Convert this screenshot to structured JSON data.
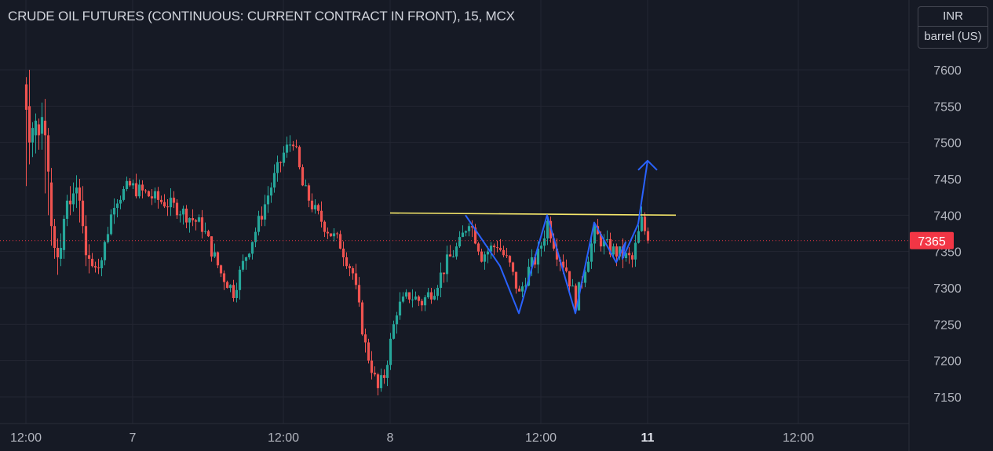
{
  "chart_data": {
    "type": "candlestick",
    "title": "CRUDE OIL FUTURES (CONTINUOUS: CURRENT CONTRACT IN FRONT), 15, MCX",
    "currency": "INR",
    "unit": "barrel (US)",
    "last_price": 7365,
    "ylim": [
      7110,
      7640
    ],
    "y_ticks": [
      7150,
      7200,
      7250,
      7300,
      7350,
      7400,
      7450,
      7500,
      7550,
      7600
    ],
    "x_ticks": [
      {
        "label": "12:00",
        "bar": 0,
        "bold": false
      },
      {
        "label": "7",
        "bar": 34,
        "bold": false
      },
      {
        "label": "12:00",
        "bar": 82,
        "bold": false
      },
      {
        "label": "8",
        "bar": 116,
        "bold": false
      },
      {
        "label": "12:00",
        "bar": 164,
        "bold": false
      },
      {
        "label": "11",
        "bar": 198,
        "bold": true
      },
      {
        "label": "12:00",
        "bar": 246,
        "bold": false
      }
    ],
    "grid": true,
    "colors": {
      "up": "#26a69a",
      "down": "#ef5350",
      "background": "#161a25",
      "grid": "#232632",
      "resistance": "#f5e76a",
      "pattern": "#2962ff",
      "price_tag": "#f23645"
    },
    "candles": [
      [
        7580,
        7545,
        7590,
        7440
      ],
      [
        7550,
        7500,
        7600,
        7470
      ],
      [
        7500,
        7520,
        7528,
        7480
      ],
      [
        7510,
        7530,
        7540,
        7485
      ],
      [
        7525,
        7510,
        7533,
        7490
      ],
      [
        7512,
        7535,
        7555,
        7490
      ],
      [
        7530,
        7510,
        7560,
        7430
      ],
      [
        7510,
        7460,
        7520,
        7400
      ],
      [
        7445,
        7385,
        7465,
        7358
      ],
      [
        7385,
        7355,
        7395,
        7340
      ],
      [
        7355,
        7342,
        7368,
        7318
      ],
      [
        7340,
        7355,
        7375,
        7330
      ],
      [
        7352,
        7395,
        7400,
        7340
      ],
      [
        7395,
        7420,
        7428,
        7385
      ],
      [
        7420,
        7415,
        7440,
        7400
      ],
      [
        7415,
        7430,
        7445,
        7405
      ],
      [
        7430,
        7438,
        7455,
        7410
      ],
      [
        7438,
        7420,
        7450,
        7390
      ],
      [
        7420,
        7385,
        7440,
        7375
      ],
      [
        7385,
        7345,
        7400,
        7330
      ],
      [
        7345,
        7340,
        7360,
        7320
      ]
    ],
    "resistance_line": {
      "price_start": 7403,
      "price_end": 7400,
      "bar_start": 116,
      "bar_end": 207
    },
    "pattern_path": [
      [
        140,
        7400
      ],
      [
        151,
        7330
      ],
      [
        157,
        7265
      ],
      [
        166,
        7400
      ],
      [
        175,
        7265
      ],
      [
        181,
        7390
      ],
      [
        188,
        7335
      ],
      [
        191,
        7363
      ],
      [
        190,
        7340
      ],
      [
        195,
        7388
      ],
      [
        198,
        7475
      ]
    ]
  }
}
